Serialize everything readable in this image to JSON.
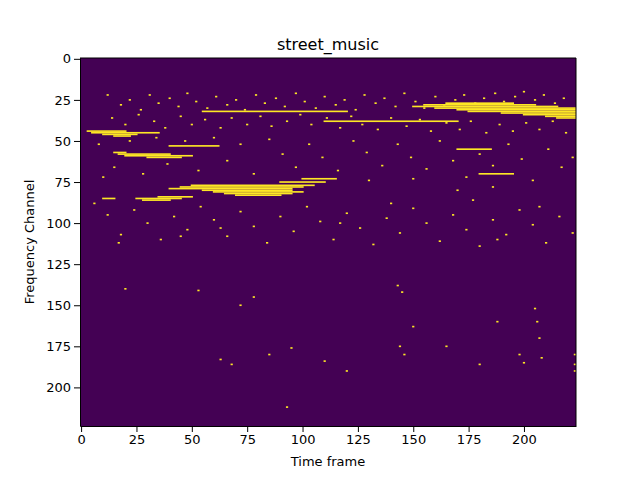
{
  "chart_data": {
    "type": "heatmap",
    "title": "street_music",
    "x_label": "Time frame",
    "y_label": "Frequency Channel",
    "xlim": [
      -0.5,
      223.5
    ],
    "ylim": [
      223.5,
      -0.5
    ],
    "xticks": [
      0,
      25,
      50,
      75,
      100,
      125,
      150,
      175,
      200
    ],
    "yticks": [
      0,
      25,
      50,
      75,
      100,
      125,
      150,
      175,
      200
    ],
    "colors": [
      "#440154",
      "#fde725"
    ],
    "segments": {
      "y": [
        44,
        45,
        46,
        47,
        53,
        57,
        58,
        59,
        60,
        32,
        38,
        27,
        28,
        29,
        30,
        31,
        32,
        33,
        34,
        35,
        36,
        55,
        70,
        73,
        75,
        77,
        78,
        79,
        80,
        81,
        82,
        83,
        84,
        85,
        86,
        85
      ],
      "x_start": [
        3,
        5,
        10,
        15,
        40,
        15,
        17,
        20,
        30,
        55,
        110,
        165,
        155,
        150,
        160,
        170,
        175,
        190,
        200,
        210,
        215,
        170,
        180,
        100,
        90,
        50,
        45,
        40,
        55,
        60,
        65,
        70,
        35,
        25,
        28,
        10
      ],
      "x_end": [
        20,
        35,
        25,
        22,
        62,
        20,
        40,
        50,
        45,
        120,
        170,
        195,
        205,
        215,
        223,
        223,
        223,
        223,
        223,
        223,
        223,
        185,
        195,
        115,
        110,
        105,
        100,
        95,
        95,
        100,
        95,
        90,
        50,
        45,
        40,
        15
      ]
    },
    "dots": {
      "x": [
        12,
        18,
        22,
        27,
        31,
        35,
        40,
        44,
        48,
        52,
        57,
        61,
        66,
        70,
        74,
        79,
        83,
        88,
        92,
        97,
        101,
        106,
        110,
        115,
        119,
        124,
        128,
        133,
        137,
        142,
        146,
        151,
        155,
        160,
        164,
        169,
        173,
        178,
        182,
        187,
        191,
        196,
        200,
        205,
        209,
        214,
        218,
        14,
        20,
        26,
        33,
        38,
        45,
        50,
        56,
        63,
        68,
        75,
        81,
        86,
        93,
        99,
        104,
        111,
        117,
        122,
        127,
        134,
        140,
        147,
        153,
        158,
        165,
        171,
        176,
        183,
        189,
        195,
        201,
        207,
        213,
        219,
        8,
        15,
        22,
        28,
        34,
        39,
        47,
        53,
        60,
        66,
        72,
        78,
        85,
        91,
        97,
        103,
        109,
        116,
        123,
        129,
        136,
        143,
        149,
        156,
        162,
        168,
        174,
        180,
        186,
        193,
        199,
        204,
        211,
        217,
        222,
        10,
        130,
        150,
        170,
        186,
        6,
        12,
        18,
        24,
        30,
        36,
        42,
        48,
        54,
        60,
        66,
        72,
        78,
        84,
        90,
        96,
        102,
        108,
        114,
        120,
        126,
        132,
        138,
        144,
        150,
        156,
        162,
        168,
        174,
        180,
        186,
        192,
        198,
        204,
        210,
        216,
        222,
        17,
        45,
        63,
        117,
        140,
        177,
        188,
        207,
        20,
        53,
        72,
        78,
        63,
        68,
        85,
        95,
        110,
        120,
        143,
        145,
        144,
        146,
        150,
        165,
        180,
        188,
        198,
        200,
        205,
        206,
        207,
        208,
        223,
        223,
        223,
        93
      ],
      "y": [
        22,
        28,
        25,
        31,
        22,
        27,
        24,
        29,
        21,
        26,
        30,
        23,
        28,
        25,
        31,
        22,
        27,
        24,
        29,
        21,
        26,
        30,
        23,
        28,
        25,
        31,
        22,
        27,
        24,
        29,
        21,
        26,
        30,
        23,
        28,
        25,
        22,
        27,
        24,
        21,
        26,
        23,
        20,
        25,
        22,
        27,
        24,
        36,
        40,
        34,
        38,
        42,
        35,
        40,
        37,
        42,
        36,
        40,
        35,
        41,
        38,
        34,
        40,
        36,
        42,
        35,
        40,
        43,
        36,
        41,
        37,
        44,
        39,
        43,
        38,
        45,
        40,
        44,
        39,
        43,
        38,
        45,
        52,
        66,
        50,
        70,
        48,
        64,
        50,
        68,
        48,
        62,
        52,
        70,
        49,
        58,
        66,
        52,
        60,
        68,
        50,
        57,
        65,
        52,
        60,
        67,
        50,
        62,
        72,
        58,
        65,
        52,
        61,
        74,
        55,
        66,
        60,
        72,
        74,
        73,
        80,
        78,
        88,
        95,
        107,
        92,
        100,
        110,
        96,
        104,
        90,
        98,
        108,
        93,
        102,
        112,
        96,
        105,
        90,
        99,
        110,
        94,
        103,
        113,
        97,
        106,
        91,
        100,
        111,
        95,
        104,
        114,
        98,
        107,
        92,
        101,
        112,
        96,
        106,
        112,
        108,
        103,
        100,
        88,
        86,
        110,
        90,
        140,
        141,
        150,
        145,
        183,
        186,
        180,
        176,
        184,
        190,
        138,
        142,
        175,
        180,
        163,
        175,
        186,
        160,
        180,
        185,
        152,
        160,
        170,
        182,
        180,
        186,
        190,
        212
      ]
    }
  }
}
